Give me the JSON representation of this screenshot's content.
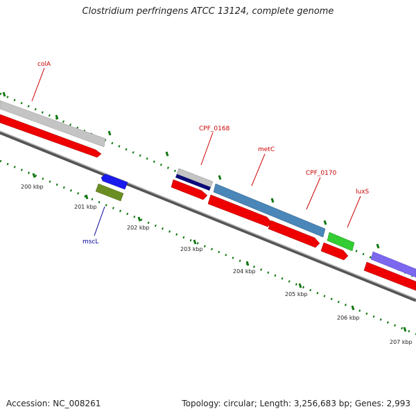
{
  "title": "Clostridium perfringens ATCC 13124, complete genome",
  "accession": "Accession: NC_008261",
  "summary": "Topology: circular; Length: 3,256,683 bp; Genes: 2,993",
  "colors": {
    "gene_label": "#cc0000",
    "gene_label_reverse": "#000099",
    "ticks": "#117711",
    "backbone": "#777777",
    "cds": "#ee0000"
  },
  "ticks": [
    {
      "label": "200 kbp"
    },
    {
      "label": "201 kbp"
    },
    {
      "label": "202 kbp"
    },
    {
      "label": "203 kbp"
    },
    {
      "label": "204 kbp"
    },
    {
      "label": "205 kbp"
    },
    {
      "label": "206 kbp"
    },
    {
      "label": "207 kbp"
    }
  ],
  "genes": [
    {
      "name": "colA",
      "strand": "forward",
      "color": "#c0c0c0"
    },
    {
      "name": "CPF_0168",
      "strand": "forward",
      "color": "#b0b0b0"
    },
    {
      "name": "metC",
      "strand": "forward",
      "color": "#4682b4"
    },
    {
      "name": "CPF_0170",
      "strand": "forward",
      "color": "#4682b4"
    },
    {
      "name": "luxS",
      "strand": "forward",
      "color": "#33cc33"
    },
    {
      "name": "mscL",
      "strand": "reverse",
      "color": "#6b8e23"
    }
  ]
}
